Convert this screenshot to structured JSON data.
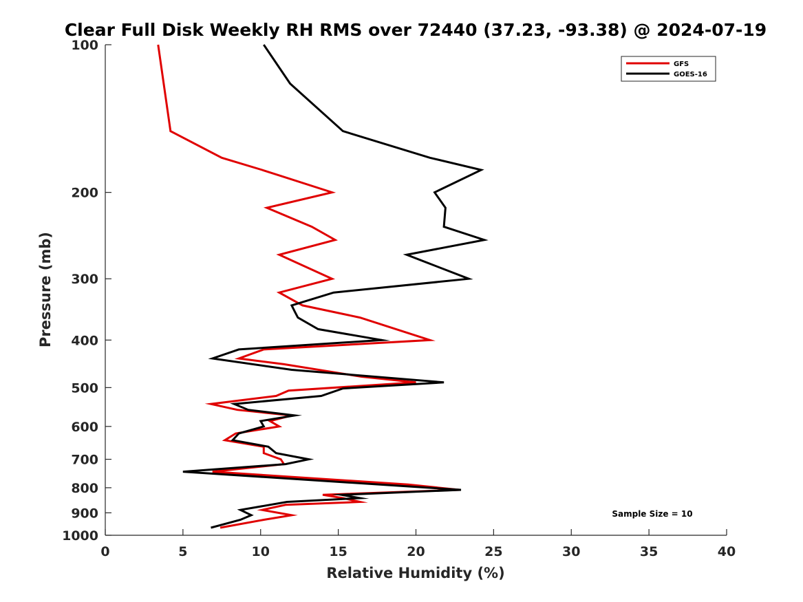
{
  "chart_data": {
    "type": "line",
    "title": "Clear Full Disk Weekly RH RMS over 72440 (37.23, -93.38) @ 2024-07-19",
    "xlabel": "Relative Humidity (%)",
    "ylabel": "Pressure (mb)",
    "xlim": [
      0,
      40
    ],
    "ylim": [
      100,
      1000
    ],
    "yscale": "log",
    "y_reversed": true,
    "xticks": [
      0,
      5,
      10,
      15,
      20,
      25,
      30,
      35,
      40
    ],
    "xtick_labels": [
      "0",
      "5",
      "10",
      "15",
      "20",
      "25",
      "30",
      "35",
      "40"
    ],
    "yticks": [
      100,
      200,
      300,
      400,
      500,
      600,
      700,
      800,
      900,
      1000
    ],
    "ytick_labels": [
      "100",
      "200",
      "300",
      "400",
      "500",
      "600",
      "700",
      "800",
      "900",
      "1000"
    ],
    "grid": false,
    "legend_position": "top-right",
    "annotation": "Sample Size = 10",
    "series": [
      {
        "name": "GFS",
        "color": "#e00000",
        "points": [
          [
            3.4,
            100
          ],
          [
            4.2,
            150
          ],
          [
            7.5,
            170
          ],
          [
            10.1,
            180
          ],
          [
            14.6,
            200
          ],
          [
            10.4,
            215
          ],
          [
            13.3,
            235
          ],
          [
            14.8,
            250
          ],
          [
            11.2,
            268
          ],
          [
            14.6,
            300
          ],
          [
            11.2,
            320
          ],
          [
            12.7,
            340
          ],
          [
            16.4,
            360
          ],
          [
            20.9,
            400
          ],
          [
            10.2,
            418
          ],
          [
            8.6,
            436
          ],
          [
            11.5,
            448
          ],
          [
            16.5,
            475
          ],
          [
            20.0,
            488
          ],
          [
            11.8,
            507
          ],
          [
            11.0,
            520
          ],
          [
            6.8,
            540
          ],
          [
            8.5,
            555
          ],
          [
            12.0,
            570
          ],
          [
            10.6,
            585
          ],
          [
            11.2,
            600
          ],
          [
            8.4,
            620
          ],
          [
            7.7,
            640
          ],
          [
            10.2,
            660
          ],
          [
            10.2,
            680
          ],
          [
            11.3,
            700
          ],
          [
            11.5,
            716
          ],
          [
            6.9,
            742
          ],
          [
            19.5,
            788
          ],
          [
            22.8,
            808
          ],
          [
            14.0,
            827
          ],
          [
            15.3,
            840
          ],
          [
            16.4,
            855
          ],
          [
            11.6,
            867
          ],
          [
            10.1,
            888
          ],
          [
            12.0,
            910
          ],
          [
            10.2,
            930
          ],
          [
            7.4,
            965
          ]
        ]
      },
      {
        "name": "GOES-16",
        "color": "#000000",
        "points": [
          [
            10.2,
            100
          ],
          [
            11.9,
            120
          ],
          [
            15.3,
            150
          ],
          [
            20.9,
            170
          ],
          [
            24.2,
            180
          ],
          [
            21.2,
            200
          ],
          [
            21.9,
            215
          ],
          [
            21.8,
            235
          ],
          [
            24.4,
            250
          ],
          [
            19.4,
            268
          ],
          [
            23.4,
            300
          ],
          [
            14.7,
            320
          ],
          [
            12.0,
            340
          ],
          [
            12.2,
            350
          ],
          [
            12.4,
            360
          ],
          [
            13.7,
            380
          ],
          [
            17.8,
            400
          ],
          [
            8.6,
            418
          ],
          [
            6.9,
            436
          ],
          [
            12.0,
            460
          ],
          [
            21.8,
            488
          ],
          [
            15.3,
            502
          ],
          [
            13.9,
            520
          ],
          [
            8.3,
            540
          ],
          [
            9.2,
            555
          ],
          [
            12.2,
            570
          ],
          [
            10.0,
            585
          ],
          [
            10.2,
            600
          ],
          [
            8.6,
            620
          ],
          [
            8.2,
            640
          ],
          [
            10.5,
            660
          ],
          [
            11.0,
            680
          ],
          [
            13.1,
            700
          ],
          [
            11.6,
            716
          ],
          [
            5.0,
            742
          ],
          [
            22.9,
            808
          ],
          [
            15.2,
            827
          ],
          [
            16.4,
            840
          ],
          [
            11.7,
            855
          ],
          [
            8.7,
            888
          ],
          [
            9.4,
            910
          ],
          [
            8.7,
            930
          ],
          [
            6.8,
            965
          ]
        ]
      }
    ]
  }
}
